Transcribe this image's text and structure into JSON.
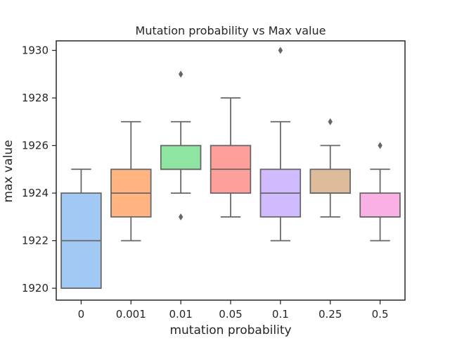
{
  "chart_data": {
    "type": "box",
    "title": "Mutation probability vs Max value",
    "xlabel": "mutation probability",
    "ylabel": "max value",
    "ylim": [
      1919.5,
      1930.4
    ],
    "y_ticks": [
      1920,
      1922,
      1924,
      1926,
      1928,
      1930
    ],
    "categories": [
      "0",
      "0.001",
      "0.01",
      "0.05",
      "0.1",
      "0.25",
      "0.5"
    ],
    "boxes": [
      {
        "category": "0",
        "whisker_low": 1920,
        "q1": 1920,
        "median": 1922,
        "q3": 1924,
        "whisker_high": 1925,
        "outliers": [],
        "color": "#a1c9f4"
      },
      {
        "category": "0.001",
        "whisker_low": 1922,
        "q1": 1923,
        "median": 1924,
        "q3": 1925,
        "whisker_high": 1927,
        "outliers": [],
        "color": "#ffb482"
      },
      {
        "category": "0.01",
        "whisker_low": 1924,
        "q1": 1925,
        "median": 1925,
        "q3": 1926,
        "whisker_high": 1927,
        "outliers": [
          1929,
          1923
        ],
        "color": "#8de5a1"
      },
      {
        "category": "0.05",
        "whisker_low": 1923,
        "q1": 1924,
        "median": 1925,
        "q3": 1926,
        "whisker_high": 1928,
        "outliers": [],
        "color": "#ff9f9b"
      },
      {
        "category": "0.1",
        "whisker_low": 1922,
        "q1": 1923,
        "median": 1924,
        "q3": 1925,
        "whisker_high": 1927,
        "outliers": [
          1930
        ],
        "color": "#d0bbff"
      },
      {
        "category": "0.25",
        "whisker_low": 1923,
        "q1": 1924,
        "median": 1924,
        "q3": 1925,
        "whisker_high": 1926,
        "outliers": [
          1927
        ],
        "color": "#debb9b"
      },
      {
        "category": "0.5",
        "whisker_low": 1922,
        "q1": 1923,
        "median": 1923,
        "q3": 1924,
        "whisker_high": 1925,
        "outliers": [
          1926
        ],
        "color": "#fab0e4"
      }
    ],
    "grid": false,
    "colors": {
      "line": "#666666",
      "axis": "#262626",
      "background": "#ffffff"
    }
  }
}
